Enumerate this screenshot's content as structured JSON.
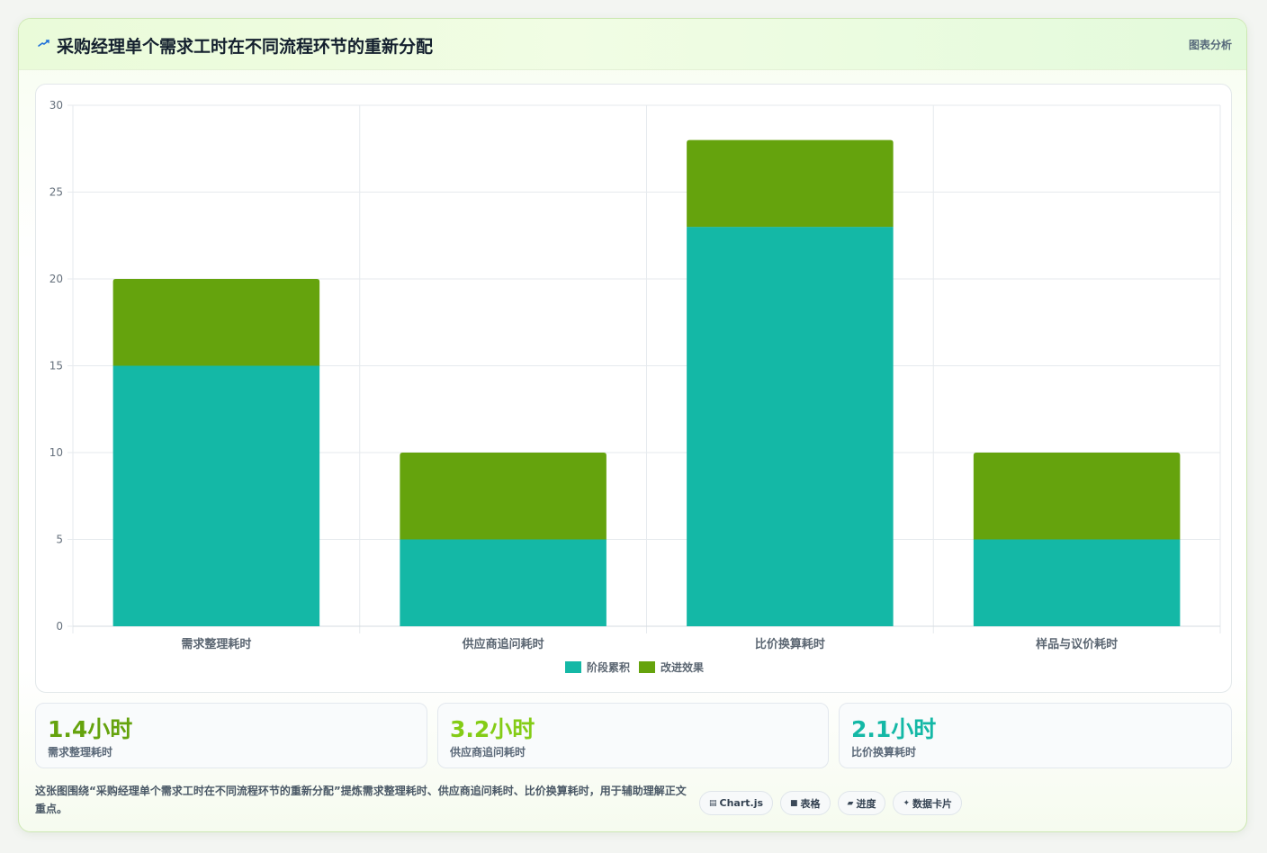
{
  "header": {
    "title": "采购经理单个需求工时在不同流程环节的重新分配",
    "tag": "图表分析",
    "icon": "trend-icon"
  },
  "chart_data": {
    "type": "bar",
    "stacked": true,
    "categories": [
      "需求整理耗时",
      "供应商追问耗时",
      "比价换算耗时",
      "样品与议价耗时"
    ],
    "series": [
      {
        "name": "阶段累积",
        "values": [
          15,
          5,
          23,
          5
        ],
        "color": "#14b8a6"
      },
      {
        "name": "改进效果",
        "values": [
          5,
          5,
          5,
          5
        ],
        "color": "#65a30d"
      }
    ],
    "ylim": [
      0,
      30
    ],
    "yticks": [
      0,
      5,
      10,
      15,
      20,
      25,
      30
    ],
    "grid": true,
    "legend_position": "bottom"
  },
  "stats": [
    {
      "value": "1.4小时",
      "label": "需求整理耗时",
      "color": "#65a30d"
    },
    {
      "value": "3.2小时",
      "label": "供应商追问耗时",
      "color": "#84cc16"
    },
    {
      "value": "2.1小时",
      "label": "比价换算耗时",
      "color": "#14b8a6"
    }
  ],
  "footer": {
    "text": "这张图围绕“采购经理单个需求工时在不同流程环节的重新分配”提炼需求整理耗时、供应商追问耗时、比价换算耗时，用于辅助理解正文重点。"
  },
  "chips": [
    {
      "icon": "▤",
      "label": "Chart.js",
      "icon_name": "chart-icon"
    },
    {
      "icon": "■",
      "label": "表格",
      "icon_name": "table-icon"
    },
    {
      "icon": "▰",
      "label": "进度",
      "icon_name": "progress-icon"
    },
    {
      "icon": "✦",
      "label": "数据卡片",
      "icon_name": "sparkle-icon"
    }
  ]
}
